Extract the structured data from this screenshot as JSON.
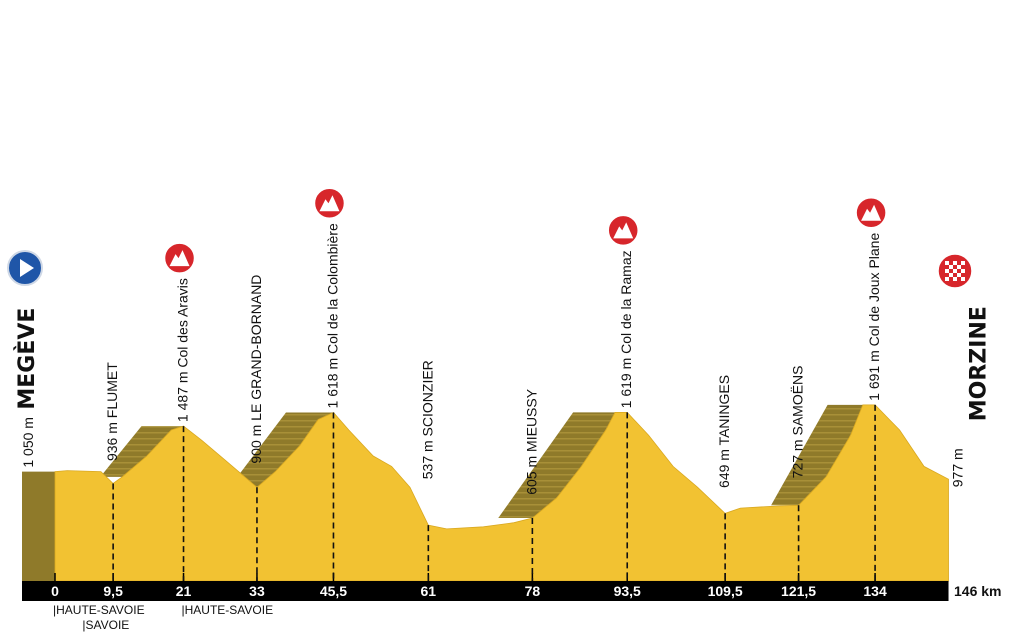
{
  "chart_data": {
    "type": "area",
    "xunit": "km",
    "distance_label": "146 km",
    "xlim": [
      0,
      146
    ],
    "ylim": [
      0,
      1750
    ],
    "profile": [
      [
        0,
        1050
      ],
      [
        2,
        1060
      ],
      [
        7.5,
        1050
      ],
      [
        9.5,
        936
      ],
      [
        11,
        1000
      ],
      [
        15,
        1200
      ],
      [
        19,
        1450
      ],
      [
        21,
        1487
      ],
      [
        24,
        1350
      ],
      [
        28,
        1150
      ],
      [
        31,
        1000
      ],
      [
        33,
        900
      ],
      [
        36,
        1050
      ],
      [
        40,
        1300
      ],
      [
        43,
        1550
      ],
      [
        45.5,
        1618
      ],
      [
        48,
        1450
      ],
      [
        52,
        1200
      ],
      [
        55,
        1100
      ],
      [
        58,
        900
      ],
      [
        61,
        537
      ],
      [
        64,
        500
      ],
      [
        70,
        520
      ],
      [
        75,
        560
      ],
      [
        78,
        605
      ],
      [
        82,
        800
      ],
      [
        86,
        1100
      ],
      [
        90,
        1450
      ],
      [
        91.5,
        1619
      ],
      [
        93.5,
        1619
      ],
      [
        97,
        1400
      ],
      [
        101,
        1100
      ],
      [
        105,
        900
      ],
      [
        109.5,
        649
      ],
      [
        112,
        700
      ],
      [
        118,
        720
      ],
      [
        121.5,
        727
      ],
      [
        126,
        1000
      ],
      [
        130,
        1400
      ],
      [
        132,
        1691
      ],
      [
        134,
        1691
      ],
      [
        138,
        1450
      ],
      [
        142,
        1100
      ],
      [
        146,
        977
      ]
    ],
    "climbs": [
      [
        11,
        21
      ],
      [
        33,
        45.5
      ],
      [
        78,
        93.5
      ],
      [
        121.5,
        134
      ]
    ],
    "ticks": [
      "0",
      "9,5",
      "21",
      "33",
      "45,5",
      "61",
      "78",
      "93,5",
      "109,5",
      "121,5",
      "134"
    ],
    "tick_km": [
      0,
      9.5,
      21,
      33,
      45.5,
      61,
      78,
      93.5,
      109.5,
      121.5,
      134
    ],
    "start": {
      "name": "MEGÈVE",
      "elevation": "1 050 m",
      "km": 0
    },
    "finish": {
      "name": "MORZINE",
      "elevation": "977 m",
      "km": 146
    },
    "points": [
      {
        "km": 9.5,
        "elev": 936,
        "text": "936 m  FLUMET",
        "climb": false
      },
      {
        "km": 21,
        "elev": 1487,
        "text": "1 487 m  Col des Aravis",
        "climb": true
      },
      {
        "km": 33,
        "elev": 900,
        "text": "900 m  LE GRAND-BORNAND",
        "climb": false
      },
      {
        "km": 45.5,
        "elev": 1618,
        "text": "1 618 m  Col de la Colombière",
        "climb": true
      },
      {
        "km": 61,
        "elev": 537,
        "text": "537 m  SCIONZIER",
        "climb": false
      },
      {
        "km": 78,
        "elev": 605,
        "text": "605 m  MIEUSSY",
        "climb": false
      },
      {
        "km": 93.5,
        "elev": 1619,
        "text": "1 619 m  Col de la Ramaz",
        "climb": true
      },
      {
        "km": 109.5,
        "elev": 649,
        "text": "649 m  TANINGES",
        "climb": false
      },
      {
        "km": 121.5,
        "elev": 727,
        "text": "727 m  SAMOËNS",
        "climb": false
      },
      {
        "km": 134,
        "elev": 1691,
        "text": "1 691 m  Col de Joux Plane",
        "climb": true
      }
    ],
    "regions": [
      {
        "km": 0,
        "text": "|HAUTE-SAVOIE",
        "row": 0
      },
      {
        "km": 4.8,
        "text": "|SAVOIE",
        "row": 1
      },
      {
        "km": 21,
        "text": "|HAUTE-SAVOIE",
        "row": 0
      }
    ],
    "colors": {
      "profile": "#f2c232",
      "climb": "#8f7a2a",
      "axis": "#000000",
      "climb_icon": "#d7262b",
      "start_icon": "#1f56a8"
    },
    "icons": {
      "start": "play-circle-icon",
      "finish": "checkered-flag-icon",
      "climb": "mountain-icon"
    }
  }
}
